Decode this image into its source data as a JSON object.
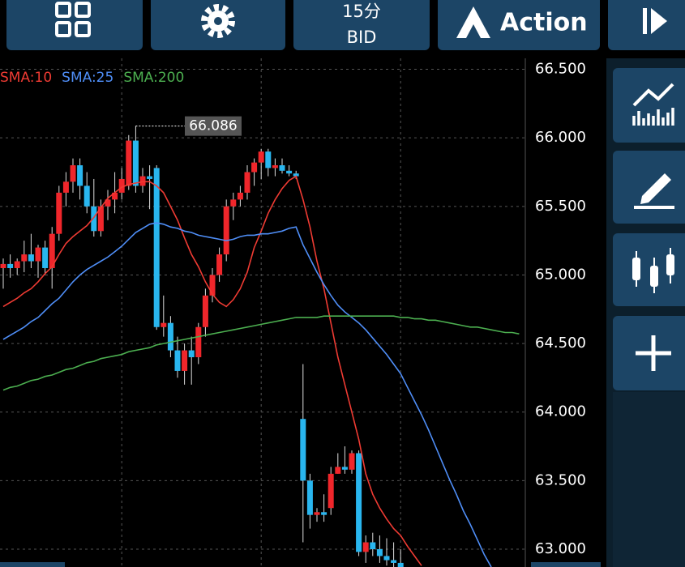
{
  "toolbar": {
    "period": "15分",
    "price_side": "BID",
    "action": "Action"
  },
  "chart_data": {
    "type": "candlestick",
    "ylim": [
      62.87,
      66.58
    ],
    "yticks": [
      {
        "value": 63.0,
        "label": "63.000"
      },
      {
        "value": 63.5,
        "label": "63.500"
      },
      {
        "value": 64.0,
        "label": "64.000"
      },
      {
        "value": 64.5,
        "label": "64.500"
      },
      {
        "value": 65.0,
        "label": "65.000"
      },
      {
        "value": 65.5,
        "label": "65.500"
      },
      {
        "value": 66.0,
        "label": "66.000"
      },
      {
        "value": 66.5,
        "label": "66.500"
      }
    ],
    "grid": true,
    "max_label": {
      "value": 66.086,
      "label": "66.086"
    },
    "candles": {
      "up_color": "#f0262b",
      "down_color": "#29b6ef",
      "open": [
        65.05,
        65.08,
        65.05,
        65.1,
        65.15,
        65.1,
        65.2,
        65.05,
        65.3,
        65.6,
        65.68,
        65.8,
        65.65,
        65.5,
        65.32,
        65.5,
        65.55,
        65.6,
        65.65,
        65.98,
        65.65,
        65.72,
        65.78,
        64.62,
        64.65,
        64.45,
        64.3,
        64.45,
        64.4,
        64.62,
        64.85,
        65.0,
        65.15,
        65.5,
        65.55,
        65.6,
        65.75,
        65.82,
        65.9,
        65.78,
        65.8,
        65.76,
        65.74,
        63.95,
        63.5,
        63.25,
        63.27,
        63.3,
        63.55,
        63.6,
        63.58,
        63.7,
        62.98,
        63.05,
        63.0,
        62.95,
        62.92,
        62.9,
        null,
        null,
        null,
        null,
        null,
        null,
        null,
        null,
        null,
        null,
        null,
        null,
        null,
        null,
        null,
        null,
        null
      ],
      "high": [
        65.12,
        65.15,
        65.12,
        65.25,
        65.3,
        65.22,
        65.25,
        65.35,
        65.65,
        65.75,
        65.85,
        65.85,
        65.75,
        65.7,
        65.55,
        65.62,
        65.75,
        65.78,
        66.02,
        66.086,
        65.78,
        65.8,
        65.8,
        64.85,
        64.7,
        64.55,
        64.5,
        64.55,
        64.65,
        64.9,
        65.05,
        65.2,
        65.55,
        65.6,
        65.65,
        65.8,
        65.85,
        65.92,
        65.92,
        65.85,
        65.85,
        65.8,
        65.76,
        64.35,
        63.55,
        63.3,
        63.4,
        63.6,
        63.7,
        63.75,
        63.72,
        63.72,
        63.1,
        63.12,
        63.1,
        63.08,
        63.05,
        63.0,
        null,
        null,
        null,
        null,
        null,
        null,
        null,
        null,
        null,
        null,
        null,
        null,
        null,
        null,
        null,
        null,
        null
      ],
      "low": [
        64.9,
        64.98,
        65.0,
        65.02,
        65.05,
        64.98,
        65.0,
        64.9,
        65.25,
        65.5,
        65.6,
        65.55,
        65.45,
        65.28,
        65.28,
        65.4,
        65.45,
        65.55,
        65.62,
        65.6,
        65.6,
        65.48,
        64.6,
        64.55,
        64.4,
        64.25,
        64.2,
        64.2,
        64.35,
        64.55,
        64.8,
        64.95,
        65.1,
        65.4,
        65.5,
        65.55,
        65.65,
        65.7,
        65.72,
        65.72,
        65.74,
        65.72,
        65.7,
        63.05,
        63.15,
        63.2,
        63.2,
        63.25,
        63.55,
        63.55,
        63.55,
        62.95,
        62.9,
        62.95,
        62.9,
        62.88,
        62.85,
        62.8,
        null,
        null,
        null,
        null,
        null,
        null,
        null,
        null,
        null,
        null,
        null,
        null,
        null,
        null,
        null,
        null,
        null
      ],
      "close": [
        65.08,
        65.05,
        65.1,
        65.15,
        65.1,
        65.2,
        65.05,
        65.3,
        65.6,
        65.68,
        65.8,
        65.65,
        65.5,
        65.32,
        65.5,
        65.55,
        65.6,
        65.7,
        65.98,
        65.65,
        65.72,
        65.7,
        64.62,
        64.65,
        64.45,
        64.3,
        64.45,
        64.4,
        64.62,
        64.85,
        65.0,
        65.15,
        65.5,
        65.55,
        65.6,
        65.75,
        65.82,
        65.9,
        65.78,
        65.8,
        65.76,
        65.74,
        65.72,
        63.5,
        63.25,
        63.27,
        63.25,
        63.55,
        63.6,
        63.58,
        63.7,
        62.98,
        63.05,
        63.0,
        62.95,
        62.92,
        62.9,
        62.85,
        null,
        null,
        null,
        null,
        null,
        null,
        null,
        null,
        null,
        null,
        null,
        null,
        null,
        null,
        null,
        null,
        null
      ]
    },
    "series": [
      {
        "name": "SMA:10",
        "color": "#ef3b33",
        "values": [
          64.77,
          64.8,
          64.83,
          64.87,
          64.9,
          64.95,
          65.01,
          65.06,
          65.15,
          65.23,
          65.28,
          65.32,
          65.36,
          65.42,
          65.49,
          65.56,
          65.6,
          65.64,
          65.66,
          65.67,
          65.68,
          65.68,
          65.65,
          65.6,
          65.5,
          65.4,
          65.27,
          65.15,
          65.06,
          64.95,
          64.86,
          64.8,
          64.77,
          64.82,
          64.9,
          65.02,
          65.2,
          65.32,
          65.45,
          65.55,
          65.63,
          65.69,
          65.72,
          65.55,
          65.35,
          65.1,
          64.9,
          64.65,
          64.4,
          64.2,
          64.0,
          63.8,
          63.55,
          63.4,
          63.3,
          63.22,
          63.15,
          63.1,
          63.02,
          62.95,
          62.88,
          null,
          null,
          null,
          null,
          null,
          null,
          null,
          null,
          null,
          null,
          null,
          null,
          null,
          null
        ]
      },
      {
        "name": "SMA:25",
        "color": "#4f8ef7",
        "values": [
          64.53,
          64.56,
          64.59,
          64.62,
          64.66,
          64.69,
          64.74,
          64.79,
          64.83,
          64.89,
          64.95,
          65.0,
          65.04,
          65.07,
          65.1,
          65.13,
          65.17,
          65.21,
          65.26,
          65.31,
          65.34,
          65.37,
          65.38,
          65.37,
          65.35,
          65.34,
          65.32,
          65.31,
          65.29,
          65.28,
          65.27,
          65.26,
          65.25,
          65.26,
          65.28,
          65.29,
          65.29,
          65.3,
          65.3,
          65.31,
          65.32,
          65.34,
          65.35,
          65.22,
          65.12,
          65.02,
          64.93,
          64.85,
          64.78,
          64.73,
          64.69,
          64.65,
          64.6,
          64.54,
          64.48,
          64.42,
          64.35,
          64.28,
          64.18,
          64.08,
          63.98,
          63.87,
          63.75,
          63.63,
          63.51,
          63.4,
          63.28,
          63.18,
          63.07,
          62.96,
          62.87,
          null,
          null,
          null,
          null
        ]
      },
      {
        "name": "SMA:200",
        "color": "#4caf50",
        "values": [
          64.16,
          64.18,
          64.19,
          64.21,
          64.23,
          64.24,
          64.26,
          64.27,
          64.29,
          64.31,
          64.32,
          64.34,
          64.36,
          64.37,
          64.39,
          64.4,
          64.41,
          64.42,
          64.44,
          64.45,
          64.46,
          64.47,
          64.49,
          64.5,
          64.51,
          64.52,
          64.53,
          64.54,
          64.55,
          64.56,
          64.57,
          64.58,
          64.59,
          64.6,
          64.61,
          64.62,
          64.63,
          64.64,
          64.65,
          64.66,
          64.67,
          64.68,
          64.69,
          64.69,
          64.69,
          64.69,
          64.7,
          64.7,
          64.7,
          64.7,
          64.7,
          64.7,
          64.7,
          64.7,
          64.7,
          64.7,
          64.7,
          64.69,
          64.69,
          64.68,
          64.68,
          64.67,
          64.67,
          64.66,
          64.65,
          64.64,
          64.63,
          64.62,
          64.62,
          64.61,
          64.6,
          64.59,
          64.58,
          64.58,
          64.57
        ]
      }
    ]
  }
}
